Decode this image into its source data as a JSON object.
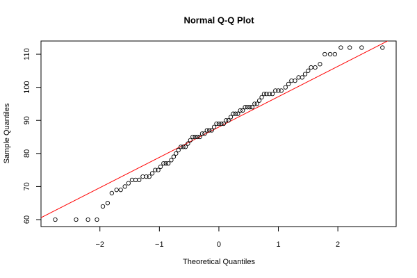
{
  "chart_data": {
    "type": "qq",
    "title": "Normal Q-Q Plot",
    "xlabel": "Theoretical Quantiles",
    "ylabel": "Sample Quantiles",
    "x": [
      -2.75,
      -2.4,
      -2.2,
      -2.05,
      -1.95,
      -1.87,
      -1.8,
      -1.72,
      -1.65,
      -1.58,
      -1.52,
      -1.46,
      -1.4,
      -1.34,
      -1.28,
      -1.22,
      -1.17,
      -1.12,
      -1.07,
      -1.02,
      -0.98,
      -0.93,
      -0.89,
      -0.85,
      -0.8,
      -0.76,
      -0.72,
      -0.68,
      -0.64,
      -0.6,
      -0.56,
      -0.52,
      -0.48,
      -0.44,
      -0.4,
      -0.36,
      -0.32,
      -0.28,
      -0.24,
      -0.2,
      -0.16,
      -0.12,
      -0.08,
      -0.04,
      0,
      0.04,
      0.08,
      0.12,
      0.16,
      0.2,
      0.24,
      0.28,
      0.32,
      0.36,
      0.4,
      0.44,
      0.48,
      0.52,
      0.56,
      0.6,
      0.64,
      0.68,
      0.72,
      0.76,
      0.8,
      0.85,
      0.9,
      0.95,
      1.0,
      1.05,
      1.12,
      1.17,
      1.22,
      1.28,
      1.34,
      1.4,
      1.45,
      1.5,
      1.55,
      1.62,
      1.7,
      1.78,
      1.87,
      1.95,
      2.05,
      2.2,
      2.4,
      2.75
    ],
    "values": [
      60,
      60,
      60,
      60,
      64,
      65,
      68,
      69,
      69,
      70,
      71,
      72,
      72,
      72,
      73,
      73,
      73,
      74,
      75,
      75,
      76,
      77,
      77,
      77,
      78,
      79,
      80,
      81,
      82,
      82,
      82,
      83,
      84,
      85,
      85,
      85,
      85,
      86,
      86,
      87,
      87,
      87,
      88,
      89,
      89,
      89,
      89,
      90,
      90,
      91,
      92,
      92,
      92,
      93,
      93,
      94,
      94,
      94,
      94,
      95,
      95,
      96,
      97,
      98,
      98,
      98,
      98,
      99,
      99,
      99,
      100,
      101,
      102,
      102,
      103,
      103,
      104,
      105,
      106,
      106,
      107,
      110,
      110,
      110,
      112,
      112,
      112,
      112
    ],
    "point_color": "#000000",
    "reference_line": {
      "intercept": 88,
      "slope": 9.17,
      "color": "#ff0000"
    },
    "xlim": [
      -2.99,
      2.98
    ],
    "ylim": [
      57.9,
      114
    ],
    "xticks": [
      {
        "value": -2,
        "label": "−2"
      },
      {
        "value": -1,
        "label": "−1"
      },
      0,
      1,
      2
    ],
    "yticks": [
      60,
      70,
      80,
      90,
      100,
      110
    ]
  }
}
